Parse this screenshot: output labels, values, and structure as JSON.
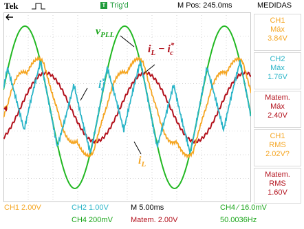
{
  "header": {
    "brand": "Tek",
    "trigger_badge": "T",
    "trigger_status": "Trig'd",
    "m_pos": "M Pos: 245.0ms",
    "measure_title": "MEDIDAS"
  },
  "measurements": [
    {
      "channel": "CH1",
      "type": "Máx",
      "value": "3.84V",
      "color": "#f5a623"
    },
    {
      "channel": "CH2",
      "type": "Máx",
      "value": "1.76V",
      "color": "#2bb5c8"
    },
    {
      "channel": "Matem.",
      "type": "Máx",
      "value": "2.40V",
      "color": "#b3121d"
    },
    {
      "channel": "CH1",
      "type": "RMS",
      "value": "2.02V?",
      "color": "#f5a623"
    },
    {
      "channel": "Matem.",
      "type": "RMS",
      "value": "1.60V",
      "color": "#b3121d"
    }
  ],
  "footer": {
    "ch1": "CH1  2.00V",
    "ch2": "CH2  1.00V",
    "timebase": "M 5.00ms",
    "trigger": "CH4 ⁄ 16.0mV",
    "ch4": "CH4  200mV",
    "math": "Matem. 2.00V",
    "frequency": "50.0036Hz"
  },
  "labels": {
    "vpll_main": "v",
    "vpll_sub": "PLL",
    "iL_main": "i",
    "iL_sub": "L",
    "diff_a": "i",
    "diff_a_sub": "L",
    "diff_minus": " − ",
    "diff_b": "i",
    "diff_b_sup": "*",
    "diff_b_sub": "c",
    "ic_main": "i",
    "ic_sup": "*",
    "ic_sub": "c"
  },
  "colors": {
    "ch1": "#f5a623",
    "ch2": "#2bb5c8",
    "ch4": "#22b822",
    "math": "#b3121d",
    "grid": "#c8c8c8",
    "trigger_green": "#1f9b3a"
  }
}
